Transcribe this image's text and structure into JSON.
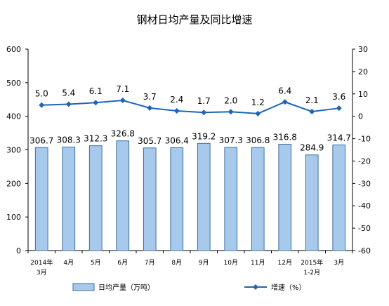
{
  "chart_data": {
    "type": "bar",
    "title": "钢材日均产量及同比增速",
    "categories": [
      [
        "2014年",
        "3月"
      ],
      [
        "4月"
      ],
      [
        "5月"
      ],
      [
        "6月"
      ],
      [
        "7月"
      ],
      [
        "8月"
      ],
      [
        "9月"
      ],
      [
        "10月"
      ],
      [
        "11月"
      ],
      [
        "12月"
      ],
      [
        "2015年",
        "1-2月"
      ],
      [
        "3月"
      ]
    ],
    "series": [
      {
        "name": "日均产量（万吨）",
        "type": "bar",
        "axis": "left",
        "values": [
          306.7,
          308.3,
          312.3,
          326.8,
          305.7,
          306.4,
          319.2,
          307.3,
          306.8,
          316.8,
          284.9,
          314.7
        ],
        "labels": [
          "306.7",
          "308.3",
          "312.3",
          "326.8",
          "305.7",
          "306.4",
          "319.2",
          "307.3",
          "306.8",
          "316.8",
          "284.9",
          "314.7"
        ]
      },
      {
        "name": "增速（%）",
        "type": "line",
        "axis": "right",
        "values": [
          5.0,
          5.4,
          6.1,
          7.1,
          3.7,
          2.4,
          1.7,
          2.0,
          1.2,
          6.4,
          2.1,
          3.6
        ],
        "labels": [
          "5.0",
          "5.4",
          "6.1",
          "7.1",
          "3.7",
          "2.4",
          "1.7",
          "2.0",
          "1.2",
          "6.4",
          "2.1",
          "3.6"
        ]
      }
    ],
    "y_left": {
      "min": 0,
      "max": 600,
      "ticks": [
        "0",
        "100",
        "200",
        "300",
        "400",
        "500",
        "600"
      ]
    },
    "y_right": {
      "min": -60,
      "max": 30,
      "ticks": [
        "-60",
        "-50",
        "-40",
        "-30",
        "-20",
        "-10",
        "0",
        "10",
        "20",
        "30"
      ]
    },
    "legend_position": "bottom",
    "grid": false,
    "colors": {
      "bar_fill": "#a6c9ec",
      "bar_stroke": "#3f6f9f",
      "line": "#1f65b5",
      "marker": "#1f65b5",
      "axis": "#000000",
      "text": "#000000"
    }
  }
}
